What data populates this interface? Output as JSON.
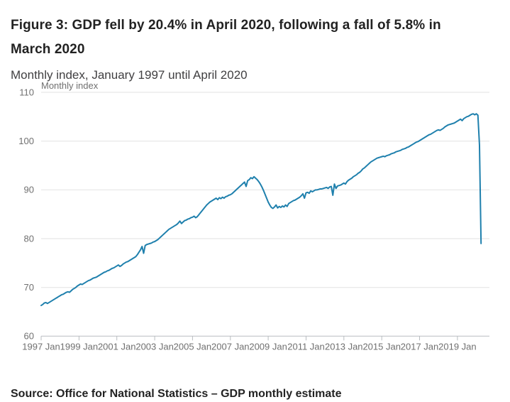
{
  "header": {
    "title_line1": "Figure 3: GDP fell by 20.4% in April 2020, following a fall of 5.8% in",
    "title_line2": "March 2020",
    "subtitle": "Monthly index, January 1997 until April 2020"
  },
  "footer": {
    "source": "Source: Office for National Statistics – GDP monthly estimate"
  },
  "chart_data": {
    "type": "line",
    "title": "Figure 3: GDP fell by 20.4% in April 2020, following a fall of 5.8% in March 2020",
    "subtitle": "Monthly index, January 1997 until April 2020",
    "axis_title": "Monthly index",
    "x_start": "1997 Jan",
    "x_end": "2020 Apr",
    "x_tick_labels": [
      "1997 Jan",
      "1999 Jan",
      "2001 Jan",
      "2003 Jan",
      "2005 Jan",
      "2007 Jan",
      "2009 Jan",
      "2011 Jan",
      "2013 Jan",
      "2015 Jan",
      "2017 Jan",
      "2019 Jan"
    ],
    "x_tick_months": [
      0,
      24,
      48,
      72,
      96,
      120,
      144,
      168,
      192,
      216,
      240,
      264
    ],
    "y_ticks": [
      60,
      70,
      80,
      90,
      100,
      110
    ],
    "ylim": [
      60,
      110
    ],
    "grid": true,
    "legend": "none",
    "line_color": "#1f80ad",
    "grid_color": "#e2e2e2",
    "axis_color": "#b9bdc1",
    "tick_label_color": "#707070",
    "series": [
      {
        "name": "GDP monthly index",
        "frequency": "monthly",
        "values": [
          66.3,
          66.5,
          66.8,
          66.9,
          66.7,
          66.9,
          67.1,
          67.3,
          67.5,
          67.7,
          67.9,
          68.1,
          68.3,
          68.5,
          68.6,
          68.8,
          69.0,
          69.1,
          69.0,
          69.3,
          69.6,
          69.8,
          70.0,
          70.3,
          70.5,
          70.7,
          70.6,
          70.8,
          71.0,
          71.2,
          71.4,
          71.5,
          71.7,
          71.9,
          72.0,
          72.1,
          72.3,
          72.5,
          72.7,
          72.9,
          73.1,
          73.2,
          73.4,
          73.5,
          73.7,
          73.9,
          74.0,
          74.2,
          74.4,
          74.6,
          74.3,
          74.5,
          74.8,
          75.0,
          75.2,
          75.3,
          75.5,
          75.7,
          75.9,
          76.1,
          76.3,
          76.7,
          77.2,
          77.7,
          78.4,
          77.0,
          78.6,
          78.8,
          78.9,
          79.0,
          79.1,
          79.3,
          79.4,
          79.6,
          79.8,
          80.1,
          80.4,
          80.7,
          81.0,
          81.3,
          81.6,
          81.9,
          82.1,
          82.3,
          82.5,
          82.7,
          82.9,
          83.2,
          83.6,
          83.1,
          83.4,
          83.7,
          83.8,
          84.0,
          84.1,
          84.3,
          84.4,
          84.6,
          84.3,
          84.5,
          84.9,
          85.3,
          85.7,
          86.1,
          86.5,
          86.9,
          87.2,
          87.5,
          87.7,
          87.9,
          88.1,
          88.3,
          88.0,
          88.4,
          88.2,
          88.5,
          88.3,
          88.6,
          88.7,
          88.9,
          89.0,
          89.2,
          89.5,
          89.8,
          90.1,
          90.4,
          90.7,
          91.0,
          91.3,
          91.6,
          90.7,
          91.9,
          92.1,
          92.5,
          92.3,
          92.7,
          92.4,
          92.1,
          91.7,
          91.2,
          90.6,
          89.9,
          89.1,
          88.3,
          87.5,
          86.9,
          86.4,
          86.2,
          86.5,
          86.9,
          86.3,
          86.6,
          86.4,
          86.7,
          86.5,
          86.9,
          86.6,
          87.2,
          87.4,
          87.6,
          87.8,
          87.9,
          88.1,
          88.3,
          88.5,
          88.8,
          89.2,
          88.3,
          89.4,
          89.5,
          89.3,
          89.8,
          89.6,
          89.8,
          90.0,
          90.0,
          90.1,
          90.2,
          90.2,
          90.3,
          90.4,
          90.5,
          90.3,
          90.6,
          90.7,
          88.9,
          91.2,
          90.3,
          90.8,
          90.9,
          91.0,
          91.2,
          91.4,
          91.2,
          91.7,
          92.0,
          92.2,
          92.4,
          92.7,
          92.9,
          93.1,
          93.4,
          93.6,
          93.9,
          94.3,
          94.5,
          94.8,
          95.1,
          95.4,
          95.7,
          95.9,
          96.1,
          96.3,
          96.5,
          96.6,
          96.7,
          96.8,
          96.9,
          96.8,
          97.0,
          97.1,
          97.2,
          97.4,
          97.5,
          97.6,
          97.8,
          97.9,
          98.0,
          98.1,
          98.3,
          98.4,
          98.5,
          98.7,
          98.8,
          99.0,
          99.2,
          99.4,
          99.6,
          99.8,
          99.9,
          100.1,
          100.3,
          100.5,
          100.7,
          100.9,
          101.1,
          101.3,
          101.4,
          101.6,
          101.8,
          102.0,
          102.2,
          102.3,
          102.2,
          102.4,
          102.6,
          102.9,
          103.1,
          103.3,
          103.4,
          103.5,
          103.6,
          103.7,
          103.9,
          104.1,
          104.3,
          104.5,
          104.2,
          104.6,
          104.8,
          105.0,
          105.1,
          105.3,
          105.5,
          105.6,
          105.4,
          105.6,
          105.3,
          99.2,
          79.0
        ]
      }
    ],
    "key_points": {
      "april_2020_fall_percent": 20.4,
      "march_2020_fall_percent": 5.8,
      "last_value": 79.0
    }
  }
}
